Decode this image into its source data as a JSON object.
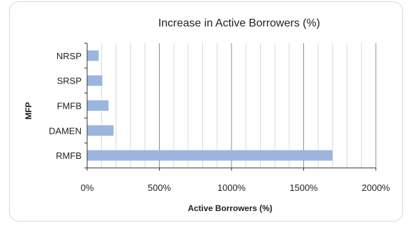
{
  "chart_data": {
    "type": "bar",
    "orientation": "horizontal",
    "title": "Increase in Active Borrowers (%)",
    "xlabel": "Active Borrowers (%)",
    "ylabel": "MFP",
    "categories": [
      "NRSP",
      "SRSP",
      "FMFB",
      "DAMEN",
      "RMFB"
    ],
    "values": [
      80,
      105,
      148,
      183,
      1700
    ],
    "xlim": [
      0,
      2000
    ],
    "xticks": [
      0,
      500,
      1000,
      1500,
      2000
    ],
    "xtick_labels": [
      "0%",
      "500%",
      "1000%",
      "1500%",
      "2000%"
    ],
    "minor_grid_step": 100,
    "grid": true,
    "legend": "none",
    "colors": {
      "bar": "#9bb5df",
      "major_grid": "#8c8c8c",
      "minor_grid": "#d9d9d9",
      "axis": "#333333"
    }
  }
}
